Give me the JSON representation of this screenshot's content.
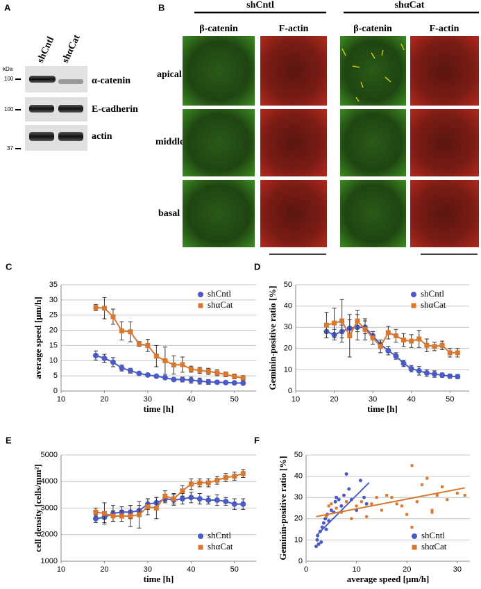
{
  "figure": {
    "panel_a": {
      "label": "A",
      "lanes": [
        "shCntl",
        "shαCat"
      ],
      "unit": "kDa",
      "markers": [
        "100",
        "100",
        "37"
      ],
      "proteins": [
        "α-catenin",
        "E-cadherin",
        "actin"
      ]
    },
    "panel_b": {
      "label": "B",
      "groups": [
        "shCntl",
        "shαCat"
      ],
      "columns": [
        "β-catenin",
        "F-actin",
        "β-catenin",
        "F-actin"
      ],
      "rows": [
        "apical",
        "middle",
        "basal"
      ]
    }
  },
  "chart_data": [
    {
      "type": "line",
      "label": "C",
      "x_label": "time [h]",
      "y_label": "average speed [μm/h]",
      "xlim": [
        10,
        55
      ],
      "xticks": [
        10,
        20,
        30,
        40,
        50
      ],
      "ylim": [
        0,
        35
      ],
      "yticks": [
        0,
        5,
        10,
        15,
        20,
        25,
        30,
        35
      ],
      "grid": true,
      "legend": "upper right",
      "x": [
        18,
        20,
        22,
        24,
        26,
        28,
        30,
        32,
        34,
        36,
        38,
        40,
        42,
        44,
        46,
        48,
        50,
        52
      ],
      "series": [
        {
          "name": "shCntl",
          "color": "#4a5bc8",
          "marker": "circle",
          "values": [
            11.7,
            10.8,
            9.5,
            7.6,
            6.7,
            5.8,
            5.3,
            4.9,
            4.4,
            3.8,
            3.8,
            3.6,
            3.3,
            3.0,
            2.9,
            2.8,
            2.7,
            2.6
          ],
          "errors": [
            1.5,
            1.3,
            1.5,
            1.0,
            0.8,
            0.5,
            0.5,
            0.5,
            0.5,
            0.5,
            0.8,
            1.0,
            1.0,
            0.8,
            0.6,
            0.5,
            0.5,
            0.5
          ]
        },
        {
          "name": "shαCat",
          "color": "#d9772e",
          "marker": "square",
          "values": [
            27.5,
            27.3,
            24.5,
            19.8,
            19.5,
            15.5,
            15,
            11.5,
            10,
            8.6,
            8.7,
            7.2,
            6.8,
            6.5,
            6,
            5.5,
            4.8,
            4.3
          ],
          "errors": [
            1,
            3.5,
            2.5,
            3,
            3.3,
            0.8,
            2,
            3.5,
            4.5,
            3,
            2.5,
            1,
            1,
            1,
            1,
            0.8,
            0.8,
            0.8
          ]
        }
      ]
    },
    {
      "type": "line",
      "label": "D",
      "x_label": "time [h]",
      "y_label": "Geminin-positive ratio [%]",
      "xlim": [
        10,
        55
      ],
      "xticks": [
        10,
        20,
        30,
        40,
        50
      ],
      "ylim": [
        0,
        50
      ],
      "yticks": [
        0,
        10,
        20,
        30,
        40,
        50
      ],
      "grid": true,
      "legend": "upper right",
      "x": [
        18,
        20,
        22,
        24,
        26,
        28,
        30,
        32,
        34,
        36,
        38,
        40,
        42,
        44,
        46,
        48,
        50,
        52
      ],
      "series": [
        {
          "name": "shCntl",
          "color": "#4a5bc8",
          "marker": "circle",
          "values": [
            28,
            26.5,
            28,
            29.5,
            30,
            30,
            26,
            22,
            19,
            16.5,
            13,
            10.5,
            9.5,
            8.5,
            8,
            7.5,
            7,
            6.8
          ],
          "errors": [
            3,
            2.5,
            3,
            4,
            6,
            3,
            2,
            2,
            2,
            1.5,
            1.5,
            1.5,
            2,
            1.5,
            1.5,
            1,
            1,
            1
          ]
        },
        {
          "name": "shαCat",
          "color": "#d9772e",
          "marker": "square",
          "values": [
            31,
            32,
            33,
            26,
            33,
            29,
            25,
            21,
            27.5,
            26,
            24,
            23.5,
            24.5,
            21.5,
            21,
            21.5,
            18,
            18
          ],
          "errors": [
            6,
            7,
            10,
            10,
            5,
            5,
            3,
            3,
            3,
            3,
            3,
            3,
            4,
            3,
            2,
            2,
            2,
            2
          ]
        }
      ]
    },
    {
      "type": "line",
      "label": "E",
      "x_label": "time [h]",
      "y_label": "cell density [cells/mm²]",
      "xlim": [
        10,
        55
      ],
      "xticks": [
        10,
        20,
        30,
        40,
        50
      ],
      "ylim": [
        1000,
        5000
      ],
      "yticks": [
        1000,
        2000,
        3000,
        4000,
        5000
      ],
      "grid": true,
      "legend": "lower right",
      "x": [
        18,
        20,
        22,
        24,
        26,
        28,
        30,
        32,
        34,
        36,
        38,
        40,
        42,
        44,
        46,
        48,
        50,
        52
      ],
      "series": [
        {
          "name": "shCntl",
          "color": "#4a5bc8",
          "marker": "circle",
          "values": [
            2600,
            2650,
            2800,
            2850,
            2850,
            2900,
            3150,
            3200,
            3350,
            3300,
            3350,
            3400,
            3350,
            3300,
            3300,
            3250,
            3150,
            3150
          ],
          "errors": [
            150,
            200,
            300,
            200,
            250,
            200,
            200,
            200,
            150,
            200,
            200,
            200,
            200,
            150,
            200,
            150,
            200,
            200
          ]
        },
        {
          "name": "shαCat",
          "color": "#d9772e",
          "marker": "square",
          "values": [
            2850,
            2800,
            2700,
            2700,
            2700,
            2750,
            3050,
            3000,
            3450,
            3350,
            3650,
            3900,
            3950,
            3950,
            4050,
            4150,
            4200,
            4300
          ],
          "errors": [
            150,
            400,
            200,
            200,
            400,
            500,
            300,
            400,
            200,
            200,
            200,
            200,
            150,
            150,
            150,
            150,
            150,
            150
          ]
        }
      ]
    },
    {
      "type": "scatter",
      "label": "F",
      "x_label": "average speed [μm/h]",
      "y_label": "Geminin-positive ratio [%]",
      "xlim": [
        0,
        32.5
      ],
      "xticks": [
        0,
        10,
        20,
        30
      ],
      "ylim": [
        0,
        50
      ],
      "yticks": [
        0,
        10,
        20,
        30,
        40,
        50
      ],
      "grid": true,
      "legend": "lower right",
      "series": [
        {
          "name": "shCntl",
          "color": "#4a5bc8",
          "marker": "circle",
          "x": [
            2,
            2.2,
            2.5,
            2.3,
            2.8,
            3,
            3.2,
            3.5,
            3.8,
            4,
            4.2,
            4.5,
            5,
            5.5,
            5.8,
            6,
            6.5,
            7,
            7.5,
            8,
            8.5,
            9,
            10,
            10.8,
            11.5,
            12
          ],
          "values": [
            7,
            10,
            8,
            12,
            14,
            9,
            16,
            18,
            20,
            15,
            22,
            19,
            24,
            23,
            28,
            30,
            29,
            26,
            31,
            41,
            34,
            29,
            24,
            38,
            30,
            27
          ],
          "fit": {
            "x": [
              2,
              12.5
            ],
            "values": [
              12,
              37
            ]
          }
        },
        {
          "name": "shαCat",
          "color": "#d9772e",
          "marker": "square",
          "x": [
            4,
            4.5,
            5,
            6,
            7,
            8,
            9,
            10,
            11,
            12,
            13,
            14,
            15,
            16,
            17,
            18,
            19,
            20,
            21,
            22,
            23,
            24,
            25,
            26,
            27,
            28,
            30,
            31.5,
            21,
            25
          ],
          "values": [
            21,
            26,
            27,
            25,
            23,
            28,
            20,
            26,
            28,
            21,
            27,
            30,
            24,
            31,
            30,
            27,
            26,
            22,
            45,
            28,
            36,
            39,
            24,
            31,
            35,
            29,
            32,
            31,
            16,
            23
          ],
          "fit": {
            "x": [
              2,
              31.5
            ],
            "values": [
              21,
              34.5
            ]
          }
        }
      ]
    }
  ]
}
